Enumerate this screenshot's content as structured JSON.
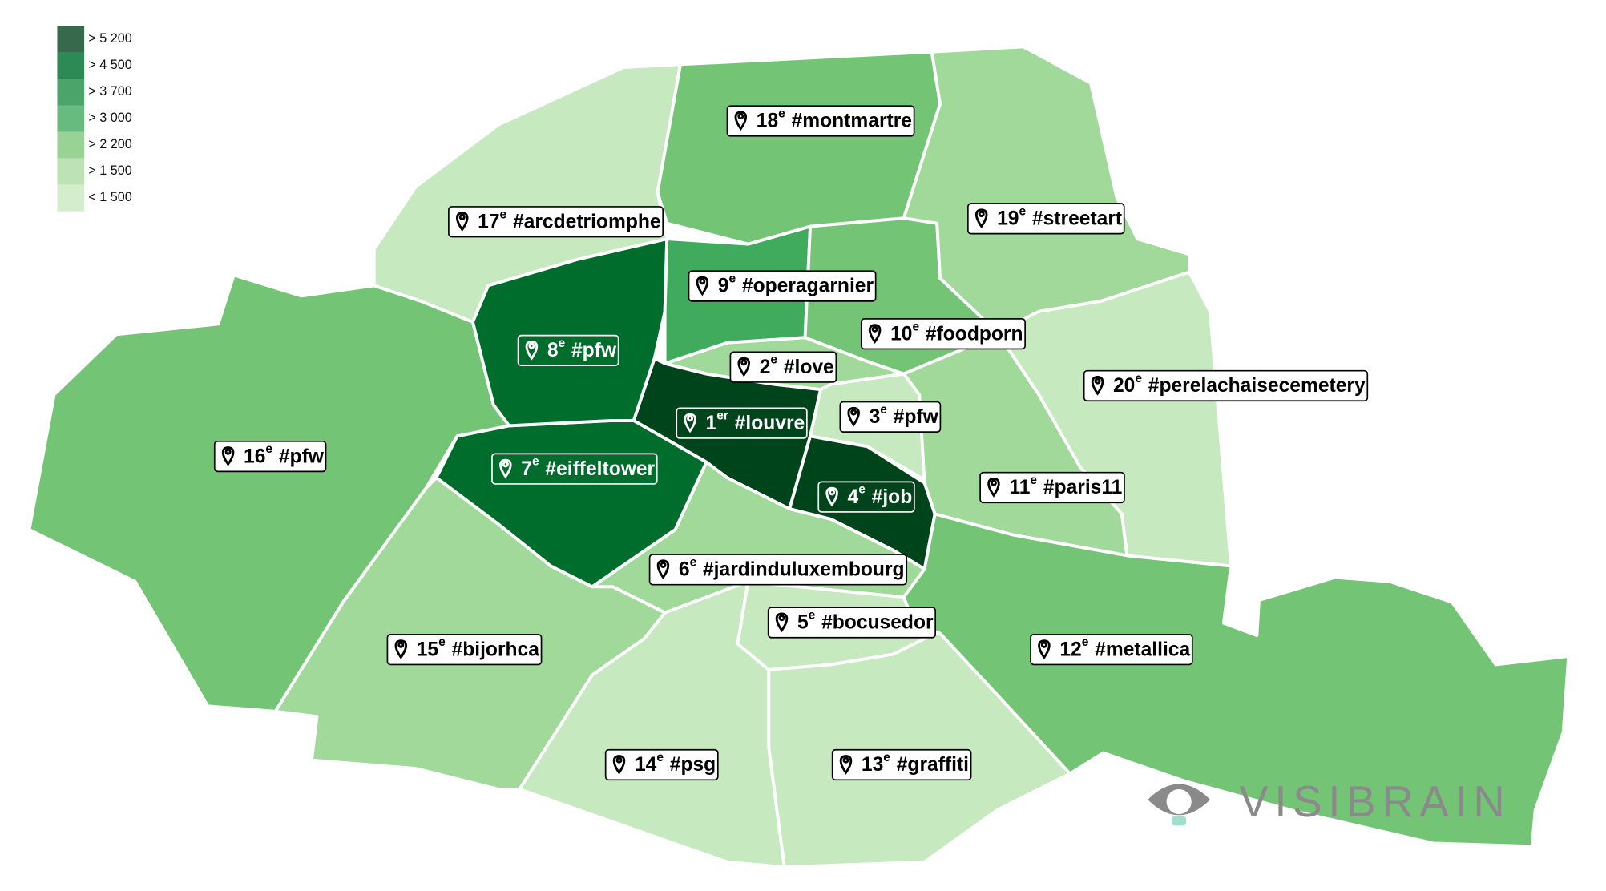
{
  "legend": [
    {
      "label": "> 5 200",
      "color": "#37694c"
    },
    {
      "label": "> 4 500",
      "color": "#2d8a55"
    },
    {
      "label": "> 3 700",
      "color": "#4ba56a"
    },
    {
      "label": "> 3 000",
      "color": "#67bb7e"
    },
    {
      "label": "> 2 200",
      "color": "#98d295"
    },
    {
      "label": "> 1 500",
      "color": "#bce2b5"
    },
    {
      "label": "< 1 500",
      "color": "#d4edcd"
    }
  ],
  "districts": [
    {
      "number": "1",
      "suffix": "er",
      "hashtag": "#louvre",
      "color": "#00441b"
    },
    {
      "number": "2",
      "suffix": "e",
      "hashtag": "#love",
      "color": "#a1d99b"
    },
    {
      "number": "3",
      "suffix": "e",
      "hashtag": "#pfw",
      "color": "#c7e9c0"
    },
    {
      "number": "4",
      "suffix": "e",
      "hashtag": "#job",
      "color": "#00441b"
    },
    {
      "number": "5",
      "suffix": "e",
      "hashtag": "#bocusedor",
      "color": "#c7e9c0"
    },
    {
      "number": "6",
      "suffix": "e",
      "hashtag": "#jardinduluxembourg",
      "color": "#a1d99b"
    },
    {
      "number": "7",
      "suffix": "e",
      "hashtag": "#eiffeltower",
      "color": "#006d2c"
    },
    {
      "number": "8",
      "suffix": "e",
      "hashtag": "#pfw",
      "color": "#006d2c"
    },
    {
      "number": "9",
      "suffix": "e",
      "hashtag": "#operagarnier",
      "color": "#41ab5d"
    },
    {
      "number": "10",
      "suffix": "e",
      "hashtag": "#foodporn",
      "color": "#74c476"
    },
    {
      "number": "11",
      "suffix": "e",
      "hashtag": "#paris11",
      "color": "#a1d99b"
    },
    {
      "number": "12",
      "suffix": "e",
      "hashtag": "#metallica",
      "color": "#74c476"
    },
    {
      "number": "13",
      "suffix": "e",
      "hashtag": "#graffiti",
      "color": "#c7e9c0"
    },
    {
      "number": "14",
      "suffix": "e",
      "hashtag": "#psg",
      "color": "#c7e9c0"
    },
    {
      "number": "15",
      "suffix": "e",
      "hashtag": "#bijorhca",
      "color": "#a1d99b"
    },
    {
      "number": "16",
      "suffix": "e",
      "hashtag": "#pfw",
      "color": "#74c476"
    },
    {
      "number": "17",
      "suffix": "e",
      "hashtag": "#arcdetriomphe",
      "color": "#c7e9c0"
    },
    {
      "number": "18",
      "suffix": "e",
      "hashtag": "#montmartre",
      "color": "#74c476"
    },
    {
      "number": "19",
      "suffix": "e",
      "hashtag": "#streetart",
      "color": "#a1d99b"
    },
    {
      "number": "20",
      "suffix": "e",
      "hashtag": "#perelachaisecemetery",
      "color": "#c7e9c0"
    }
  ],
  "brand": "VISIBRAIN"
}
